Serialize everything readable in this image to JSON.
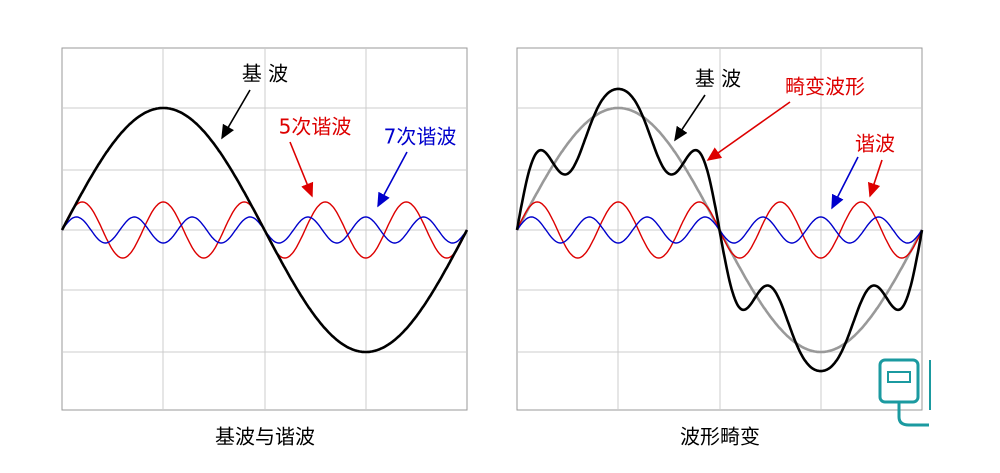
{
  "left": {
    "labels": {
      "fundamental": "基 波",
      "fifth": "5次谐波",
      "seventh": "7次谐波"
    },
    "caption": "基波与谐波"
  },
  "right": {
    "labels": {
      "fundamental": "基 波",
      "distorted": "畸变波形",
      "harmonic": "谐波"
    },
    "caption": "波形畸变"
  }
}
